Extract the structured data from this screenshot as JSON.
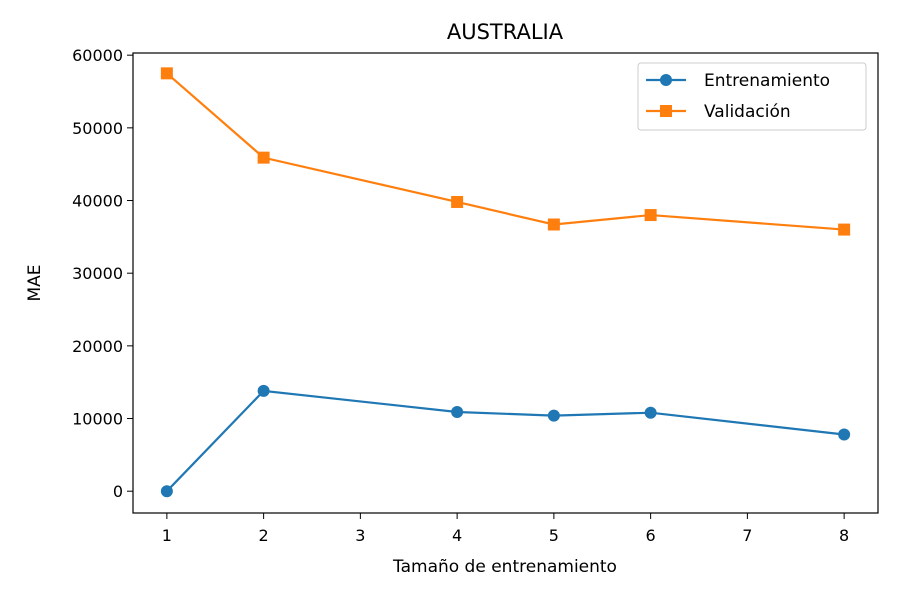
{
  "chart_data": {
    "type": "line",
    "title": "AUSTRALIA",
    "xlabel": "Tamaño de entrenamiento",
    "ylabel": "MAE",
    "xlim": [
      0.65,
      8.35
    ],
    "ylim": [
      -3000,
      60300
    ],
    "xticks": [
      1,
      2,
      3,
      4,
      5,
      6,
      7,
      8
    ],
    "yticks": [
      0,
      10000,
      20000,
      30000,
      40000,
      50000,
      60000
    ],
    "grid": false,
    "legend_position": "top-right",
    "series": [
      {
        "name": "Entrenamiento",
        "color": "#1f77b4",
        "marker": "circle",
        "x": [
          1,
          2,
          4,
          5,
          6,
          8
        ],
        "y": [
          0,
          13800,
          10900,
          10400,
          10800,
          7800
        ]
      },
      {
        "name": "Validación",
        "color": "#ff7f0e",
        "marker": "square",
        "x": [
          1,
          2,
          4,
          5,
          6,
          8
        ],
        "y": [
          57500,
          45900,
          39800,
          36700,
          38000,
          36000
        ]
      }
    ]
  }
}
